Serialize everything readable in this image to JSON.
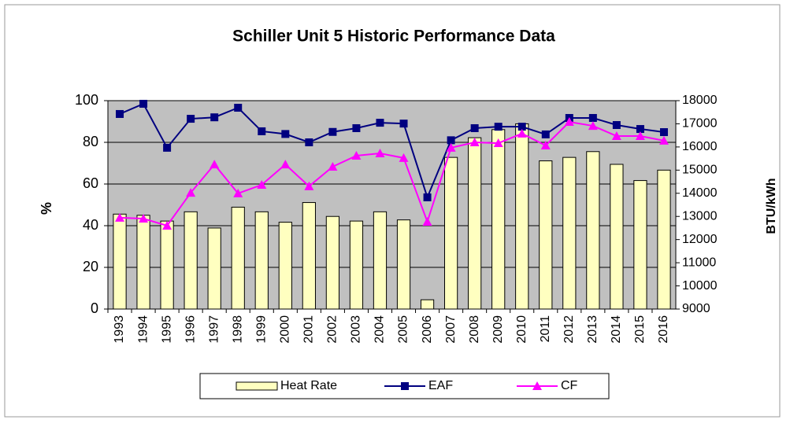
{
  "chart_data": {
    "type": "combo",
    "title": "Schiller Unit 5 Historic Performance Data",
    "y_label": "%",
    "y2_label": "BTU/kWh",
    "categories": [
      "1993",
      "1994",
      "1995",
      "1996",
      "1997",
      "1998",
      "1999",
      "2000",
      "2001",
      "2002",
      "2003",
      "2004",
      "2005",
      "2006",
      "2007",
      "2008",
      "2009",
      "2010",
      "2011",
      "2012",
      "2013",
      "2014",
      "2015",
      "2016"
    ],
    "series": [
      {
        "name": "Heat Rate",
        "type": "bar",
        "axis": "y2",
        "color": "#ffffc0",
        "values": [
          13100,
          13050,
          12800,
          13200,
          12500,
          13400,
          13200,
          12750,
          13600,
          13000,
          12800,
          13200,
          12850,
          9400,
          15550,
          16400,
          16750,
          17000,
          15400,
          15550,
          15800,
          15250,
          14550,
          15000
        ]
      },
      {
        "name": "EAF",
        "type": "line",
        "marker": "square",
        "color": "#000080",
        "values": [
          93.6,
          98.5,
          77.4,
          91.3,
          92,
          96.6,
          85.3,
          84,
          80,
          85,
          86.8,
          89.4,
          89,
          53.6,
          81,
          86.8,
          87.5,
          87.5,
          83.8,
          91.7,
          91.7,
          88.3,
          86.4,
          84.9
        ]
      },
      {
        "name": "CF",
        "type": "line",
        "marker": "triangle",
        "color": "#ff00ff",
        "values": [
          43.8,
          43.4,
          40,
          55.8,
          69.4,
          55.5,
          59.6,
          69.4,
          58.9,
          68.3,
          73.6,
          74.7,
          72.5,
          41.9,
          77.4,
          80,
          79.6,
          84.2,
          78.5,
          89.8,
          87.9,
          83,
          83,
          80.8
        ]
      }
    ],
    "ylim": [
      0,
      100
    ],
    "yticks": [
      0,
      20,
      40,
      60,
      80,
      100
    ],
    "y2lim": [
      9000,
      18000
    ],
    "y2ticks": [
      9000,
      10000,
      11000,
      12000,
      13000,
      14000,
      15000,
      16000,
      17000,
      18000
    ],
    "grid": true,
    "legend": "bottom"
  }
}
